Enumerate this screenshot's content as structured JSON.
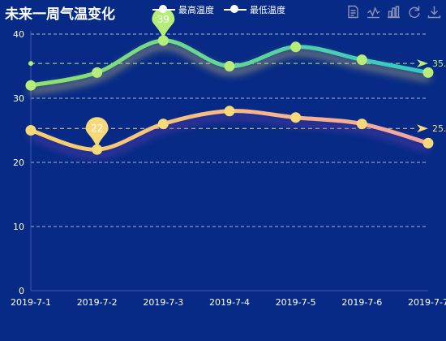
{
  "title": "未来一周气温变化",
  "legend": [
    {
      "name": "最高温度"
    },
    {
      "name": "最低温度"
    }
  ],
  "toolbox": [
    "data-view-icon",
    "chart-line-icon",
    "chart-bar-icon",
    "restore-icon",
    "download-icon"
  ],
  "colors": {
    "background": "#062a85",
    "high_line_start": "#91e36a",
    "high_line_end": "#2fc9c8",
    "low_line_start": "#f7d26a",
    "low_line_end": "#f5a3a3",
    "high_point": "#b6ec79",
    "low_point": "#f8d97a",
    "grid": "#ffffff",
    "text": "#ffffff"
  },
  "chart_data": {
    "type": "line",
    "title": "未来一周气温变化",
    "categories": [
      "2019-7-1",
      "2019-7-2",
      "2019-7-3",
      "2019-7-4",
      "2019-7-5",
      "2019-7-6",
      "2019-7-7"
    ],
    "series": [
      {
        "name": "最高温度",
        "values": [
          32,
          34,
          39,
          35,
          38,
          36,
          34
        ],
        "max_label": "39",
        "mean_label": "35."
      },
      {
        "name": "最低温度",
        "values": [
          25,
          22,
          26,
          28,
          27,
          26,
          23
        ],
        "min_label": "22",
        "mean_label": "25."
      }
    ],
    "y_ticks": [
      "0",
      "10",
      "20",
      "30",
      "40"
    ],
    "ylim": [
      0,
      40
    ],
    "grid": true,
    "smooth": true
  }
}
